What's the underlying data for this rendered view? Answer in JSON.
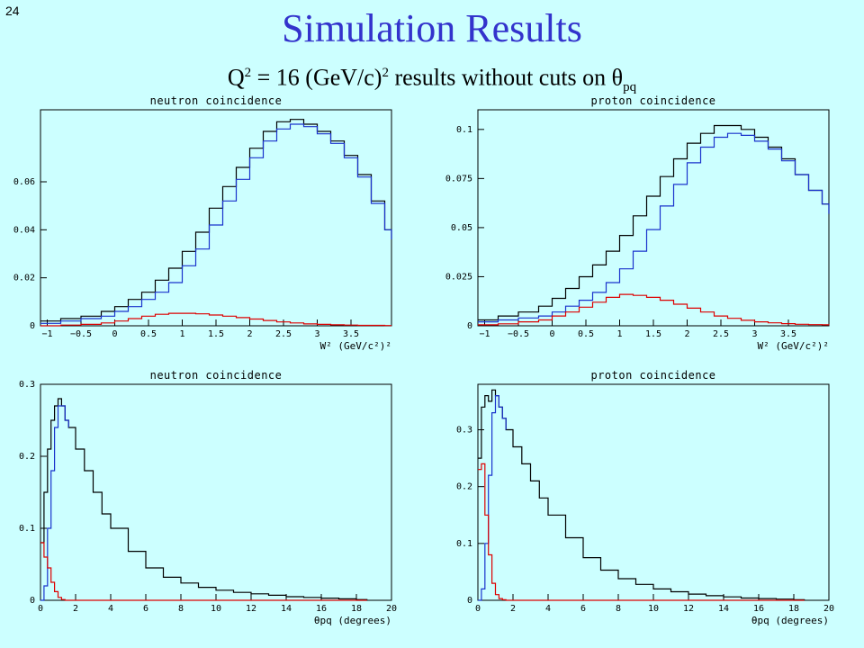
{
  "slide_number": "24",
  "title": "Simulation Results",
  "subtitle": {
    "pre": "Q",
    "sup1": "2",
    "mid": " = 16 (GeV/c)",
    "sup2": "2",
    "post": " results without cuts on θ",
    "sub": "pq"
  },
  "colors": {
    "background": "#ccffff",
    "title": "#3333cc",
    "total": "#000000",
    "blue": "#1a33cc",
    "red": "#dd0000"
  },
  "chart_data": [
    {
      "type": "line",
      "step": true,
      "title": "neutron coincidence",
      "xlabel": "W² (GeV/c²)²",
      "ylabel": "",
      "xlim": [
        -1.1,
        4.1
      ],
      "ylim": [
        0,
        0.09
      ],
      "xticks": [
        -1,
        -0.5,
        0,
        0.5,
        1,
        1.5,
        2,
        2.5,
        3,
        3.5
      ],
      "xtick_labels": [
        "−1",
        "−0.5",
        "0",
        "0.5",
        "1",
        "1.5",
        "2",
        "2.5",
        "3",
        "3.5"
      ],
      "yticks": [
        0,
        0.02,
        0.04,
        0.06
      ],
      "ytick_labels": [
        "0",
        "0.02",
        "0.04",
        "0.06"
      ],
      "series": [
        {
          "color": "#000000",
          "x": [
            -1.1,
            -0.8,
            -0.5,
            -0.2,
            0.0,
            0.2,
            0.4,
            0.6,
            0.8,
            1.0,
            1.2,
            1.4,
            1.6,
            1.8,
            2.0,
            2.2,
            2.4,
            2.6,
            2.8,
            3.0,
            3.2,
            3.4,
            3.6,
            3.8,
            4.0,
            4.1
          ],
          "y": [
            0.002,
            0.003,
            0.004,
            0.006,
            0.008,
            0.011,
            0.014,
            0.019,
            0.024,
            0.031,
            0.039,
            0.049,
            0.058,
            0.066,
            0.074,
            0.081,
            0.085,
            0.086,
            0.084,
            0.081,
            0.077,
            0.071,
            0.063,
            0.052,
            0.04,
            0.036
          ]
        },
        {
          "color": "#1a33cc",
          "x": [
            -1.1,
            -0.8,
            -0.5,
            -0.2,
            0.0,
            0.2,
            0.4,
            0.6,
            0.8,
            1.0,
            1.2,
            1.4,
            1.6,
            1.8,
            2.0,
            2.2,
            2.4,
            2.6,
            2.8,
            3.0,
            3.2,
            3.4,
            3.6,
            3.8,
            4.0,
            4.1
          ],
          "y": [
            0.001,
            0.002,
            0.003,
            0.004,
            0.006,
            0.008,
            0.011,
            0.014,
            0.018,
            0.025,
            0.032,
            0.042,
            0.052,
            0.061,
            0.07,
            0.077,
            0.082,
            0.084,
            0.083,
            0.08,
            0.076,
            0.07,
            0.062,
            0.051,
            0.04,
            0.036
          ]
        },
        {
          "color": "#dd0000",
          "x": [
            -1.1,
            -0.8,
            -0.5,
            -0.2,
            0.0,
            0.2,
            0.4,
            0.6,
            0.8,
            1.0,
            1.2,
            1.4,
            1.6,
            1.8,
            2.0,
            2.2,
            2.4,
            2.6,
            2.8,
            3.0,
            3.2,
            3.4,
            3.6,
            3.8,
            4.0,
            4.1
          ],
          "y": [
            0.0,
            0.0003,
            0.0006,
            0.0012,
            0.002,
            0.003,
            0.004,
            0.0048,
            0.0052,
            0.0052,
            0.005,
            0.0045,
            0.004,
            0.0034,
            0.0028,
            0.0022,
            0.0016,
            0.0012,
            0.0008,
            0.0006,
            0.0004,
            0.0003,
            0.0002,
            0.0002,
            0.0001,
            0.0001
          ]
        }
      ]
    },
    {
      "type": "line",
      "step": true,
      "title": "proton coincidence",
      "xlabel": "W² (GeV/c²)²",
      "ylabel": "",
      "xlim": [
        -1.1,
        4.1
      ],
      "ylim": [
        0,
        0.11
      ],
      "xticks": [
        -1,
        -0.5,
        0,
        0.5,
        1,
        1.5,
        2,
        2.5,
        3,
        3.5
      ],
      "xtick_labels": [
        "−1",
        "−0.5",
        "0",
        "0.5",
        "1",
        "1.5",
        "2",
        "2.5",
        "3",
        "3.5"
      ],
      "yticks": [
        0,
        0.025,
        0.05,
        0.075,
        0.1
      ],
      "ytick_labels": [
        "0",
        "0.025",
        "0.05",
        "0.075",
        "0.1"
      ],
      "series": [
        {
          "color": "#000000",
          "x": [
            -1.1,
            -0.8,
            -0.5,
            -0.2,
            0.0,
            0.2,
            0.4,
            0.6,
            0.8,
            1.0,
            1.2,
            1.4,
            1.6,
            1.8,
            2.0,
            2.2,
            2.4,
            2.6,
            2.8,
            3.0,
            3.2,
            3.4,
            3.6,
            3.8,
            4.0,
            4.1
          ],
          "y": [
            0.003,
            0.005,
            0.007,
            0.01,
            0.014,
            0.019,
            0.025,
            0.031,
            0.038,
            0.046,
            0.056,
            0.066,
            0.076,
            0.085,
            0.093,
            0.098,
            0.102,
            0.102,
            0.1,
            0.096,
            0.091,
            0.085,
            0.077,
            0.069,
            0.062,
            0.057
          ]
        },
        {
          "color": "#1a33cc",
          "x": [
            -1.1,
            -0.8,
            -0.5,
            -0.2,
            0.0,
            0.2,
            0.4,
            0.6,
            0.8,
            1.0,
            1.2,
            1.4,
            1.6,
            1.8,
            2.0,
            2.2,
            2.4,
            2.6,
            2.8,
            3.0,
            3.2,
            3.4,
            3.6,
            3.8,
            4.0,
            4.1
          ],
          "y": [
            0.002,
            0.003,
            0.004,
            0.005,
            0.007,
            0.01,
            0.013,
            0.017,
            0.022,
            0.029,
            0.038,
            0.049,
            0.061,
            0.072,
            0.083,
            0.091,
            0.096,
            0.098,
            0.097,
            0.094,
            0.09,
            0.084,
            0.077,
            0.069,
            0.062,
            0.057
          ]
        },
        {
          "color": "#dd0000",
          "x": [
            -1.1,
            -0.8,
            -0.5,
            -0.2,
            0.0,
            0.2,
            0.4,
            0.6,
            0.8,
            1.0,
            1.2,
            1.4,
            1.6,
            1.8,
            2.0,
            2.2,
            2.4,
            2.6,
            2.8,
            3.0,
            3.2,
            3.4,
            3.6,
            3.8,
            4.0,
            4.1
          ],
          "y": [
            0.0005,
            0.001,
            0.002,
            0.003,
            0.005,
            0.007,
            0.0095,
            0.012,
            0.0145,
            0.016,
            0.0155,
            0.0145,
            0.013,
            0.011,
            0.009,
            0.007,
            0.005,
            0.0038,
            0.0028,
            0.002,
            0.0015,
            0.0011,
            0.0008,
            0.0006,
            0.0005,
            0.0004
          ]
        }
      ]
    },
    {
      "type": "line",
      "step": true,
      "title": "neutron coincidence",
      "xlabel": "θpq (degrees)",
      "ylabel": "",
      "xlim": [
        0,
        20
      ],
      "ylim": [
        0,
        0.3
      ],
      "xticks": [
        0,
        2,
        4,
        6,
        8,
        10,
        12,
        14,
        16,
        18,
        20
      ],
      "xtick_labels": [
        "0",
        "2",
        "4",
        "6",
        "8",
        "10",
        "12",
        "14",
        "16",
        "18",
        "20"
      ],
      "yticks": [
        0,
        0.1,
        0.2,
        0.3
      ],
      "ytick_labels": [
        "0",
        "0.1",
        "0.2",
        "0.3"
      ],
      "series": [
        {
          "color": "#000000",
          "x": [
            0,
            0.2,
            0.4,
            0.6,
            0.8,
            1.0,
            1.2,
            1.4,
            1.6,
            2.0,
            2.5,
            3.0,
            3.5,
            4.0,
            5.0,
            6.0,
            7.0,
            8.0,
            9.0,
            10,
            11,
            12,
            13,
            14,
            15,
            16,
            17,
            18,
            18.6
          ],
          "y": [
            0.08,
            0.15,
            0.21,
            0.25,
            0.27,
            0.28,
            0.27,
            0.25,
            0.24,
            0.21,
            0.18,
            0.15,
            0.12,
            0.1,
            0.068,
            0.045,
            0.032,
            0.024,
            0.018,
            0.014,
            0.011,
            0.009,
            0.007,
            0.005,
            0.004,
            0.003,
            0.002,
            0.001,
            0.0
          ]
        },
        {
          "color": "#1a33cc",
          "x": [
            0,
            0.2,
            0.4,
            0.6,
            0.8,
            1.0,
            1.2,
            1.4,
            1.6
          ],
          "y": [
            0.0,
            0.02,
            0.1,
            0.18,
            0.24,
            0.27,
            0.27,
            0.25,
            0.24
          ]
        },
        {
          "color": "#dd0000",
          "x": [
            0,
            0.2,
            0.4,
            0.6,
            0.8,
            1.0,
            1.2,
            1.4,
            1.6,
            2.0,
            4.0,
            8.0,
            12,
            16,
            18.6
          ],
          "y": [
            0.08,
            0.06,
            0.045,
            0.025,
            0.012,
            0.004,
            0.001,
            0.0,
            0.0,
            0.0,
            0.0,
            0.0,
            0.0,
            0.0,
            0.0
          ]
        }
      ]
    },
    {
      "type": "line",
      "step": true,
      "title": "proton coincidence",
      "xlabel": "θpq (degrees)",
      "ylabel": "",
      "xlim": [
        0,
        20
      ],
      "ylim": [
        0,
        0.38
      ],
      "xticks": [
        0,
        2,
        4,
        6,
        8,
        10,
        12,
        14,
        16,
        18,
        20
      ],
      "xtick_labels": [
        "0",
        "2",
        "4",
        "6",
        "8",
        "10",
        "12",
        "14",
        "16",
        "18",
        "20"
      ],
      "yticks": [
        0,
        0.1,
        0.2,
        0.3
      ],
      "ytick_labels": [
        "0",
        "0.1",
        "0.2",
        "0.3"
      ],
      "series": [
        {
          "color": "#000000",
          "x": [
            0,
            0.2,
            0.4,
            0.6,
            0.8,
            1.0,
            1.2,
            1.4,
            1.6,
            2.0,
            2.5,
            3.0,
            3.5,
            4.0,
            5.0,
            6.0,
            7.0,
            8.0,
            9.0,
            10,
            11,
            12,
            13,
            14,
            15,
            16,
            17,
            18,
            18.6
          ],
          "y": [
            0.25,
            0.34,
            0.36,
            0.35,
            0.37,
            0.36,
            0.34,
            0.32,
            0.3,
            0.27,
            0.24,
            0.21,
            0.18,
            0.15,
            0.11,
            0.075,
            0.053,
            0.038,
            0.028,
            0.02,
            0.015,
            0.011,
            0.008,
            0.006,
            0.004,
            0.003,
            0.002,
            0.001,
            0.0
          ]
        },
        {
          "color": "#1a33cc",
          "x": [
            0,
            0.2,
            0.4,
            0.6,
            0.8,
            1.0,
            1.2,
            1.4,
            1.6
          ],
          "y": [
            0.0,
            0.02,
            0.1,
            0.22,
            0.33,
            0.36,
            0.34,
            0.32,
            0.3
          ]
        },
        {
          "color": "#dd0000",
          "x": [
            0,
            0.2,
            0.4,
            0.6,
            0.8,
            1.0,
            1.2,
            1.4,
            1.6,
            2.0,
            4.0,
            8.0,
            12,
            16,
            18.6
          ],
          "y": [
            0.23,
            0.24,
            0.15,
            0.08,
            0.03,
            0.01,
            0.003,
            0.001,
            0.0,
            0.0,
            0.0,
            0.0,
            0.0,
            0.0,
            0.0
          ]
        }
      ]
    }
  ]
}
